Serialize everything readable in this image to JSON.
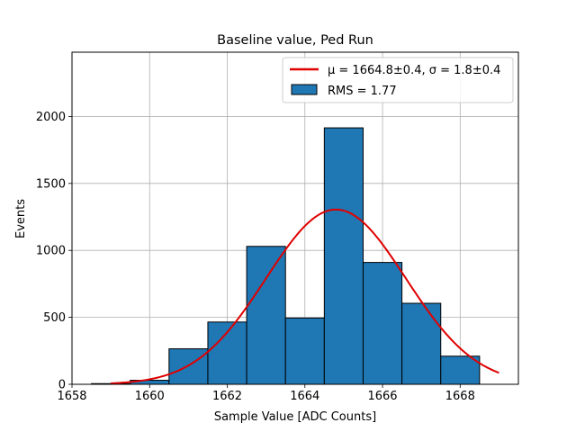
{
  "chart_data": {
    "type": "bar",
    "title": "Baseline value, Ped Run",
    "xlabel": "Sample Value [ADC Counts]",
    "ylabel": "Events",
    "xlim": [
      1658,
      1669.5
    ],
    "ylim": [
      0,
      2480
    ],
    "grid": true,
    "xticks": [
      1658,
      1660,
      1662,
      1664,
      1666,
      1668
    ],
    "yticks": [
      0,
      500,
      1000,
      1500,
      2000
    ],
    "bins": [
      {
        "left": 1658.5,
        "right": 1659.5,
        "value": 5
      },
      {
        "left": 1659.5,
        "right": 1660.5,
        "value": 30
      },
      {
        "left": 1660.5,
        "right": 1661.5,
        "value": 265
      },
      {
        "left": 1661.5,
        "right": 1662.5,
        "value": 465
      },
      {
        "left": 1662.5,
        "right": 1663.5,
        "value": 1030
      },
      {
        "left": 1663.5,
        "right": 1664.5,
        "value": 495
      },
      {
        "left": 1664.5,
        "right": 1665.5,
        "value": 1915
      },
      {
        "left": 1665.5,
        "right": 1666.5,
        "value": 910
      },
      {
        "left": 1666.5,
        "right": 1667.5,
        "value": 605
      },
      {
        "left": 1667.5,
        "right": 1668.5,
        "value": 210
      }
    ],
    "fit": {
      "mu": 1664.8,
      "sigma": 1.8,
      "amplitude": 1305,
      "x_range": [
        1659,
        1669
      ]
    },
    "legend": {
      "position": "top-right",
      "fit_label": "μ = 1664.8±0.4, σ = 1.8±0.4",
      "hist_label": "RMS = 1.77"
    },
    "colors": {
      "bar": "#1f77b4",
      "bar_edge": "#000000",
      "fit": "#e00000",
      "grid": "#b0b0b0"
    }
  }
}
